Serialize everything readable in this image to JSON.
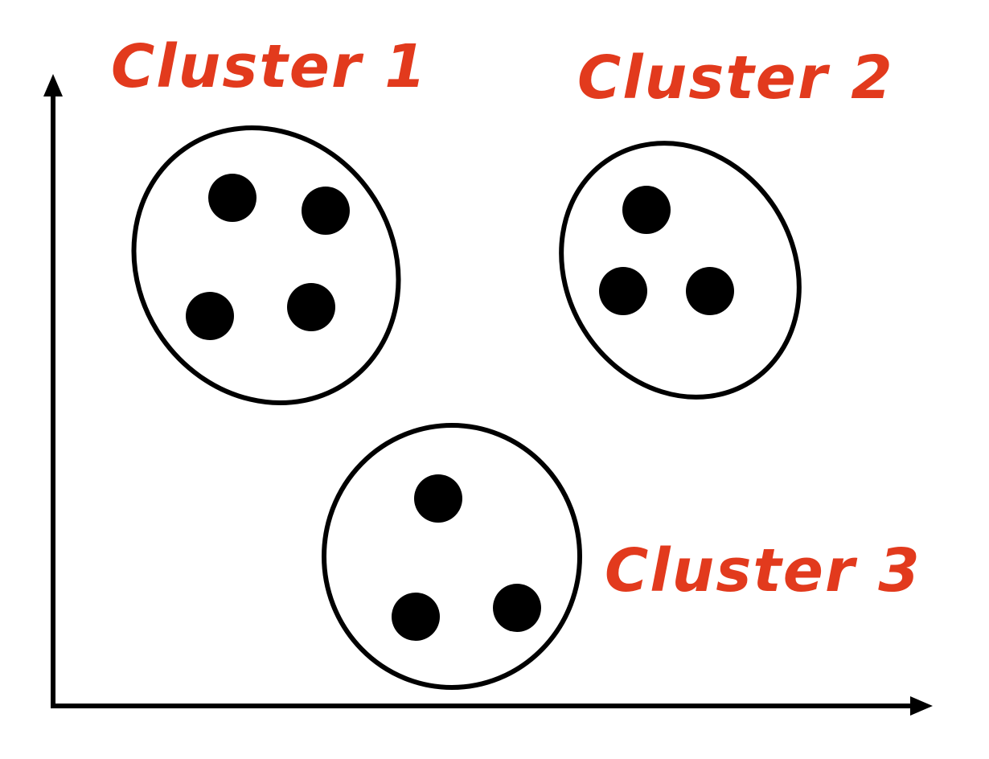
{
  "labels": {
    "cluster_1": "Cluster 1",
    "cluster_2": "Cluster 2",
    "cluster_3": "Cluster 3"
  },
  "colors": {
    "label": "#e23a1d",
    "ink": "#000000",
    "background": "#ffffff"
  },
  "clusters": [
    {
      "label": "Cluster 1",
      "point_count": 4
    },
    {
      "label": "Cluster 2",
      "point_count": 3
    },
    {
      "label": "Cluster 3",
      "point_count": 3
    }
  ]
}
